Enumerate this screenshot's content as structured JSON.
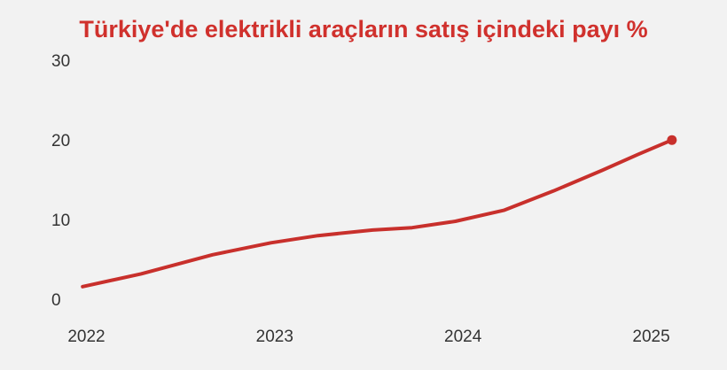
{
  "chart_data": {
    "type": "line",
    "title": "Türkiye'de elektrikli araçların satış içindeki payı %",
    "x": [
      2021.98,
      2022.29,
      2022.67,
      2022.98,
      2023.23,
      2023.52,
      2023.73,
      2023.96,
      2024.22,
      2024.48,
      2024.74,
      2024.93,
      2025.11
    ],
    "values": [
      1.8,
      3.4,
      5.8,
      7.3,
      8.2,
      8.9,
      9.2,
      10.0,
      11.4,
      13.8,
      16.4,
      18.4,
      20.2
    ],
    "color": "#c8302c",
    "xlim": [
      2021.8,
      2025.2
    ],
    "xticks": [
      2022,
      2023,
      2024,
      2025
    ],
    "ylim": [
      0,
      30
    ],
    "yticks": [
      0,
      10,
      20,
      30
    ],
    "end_marker": true
  }
}
